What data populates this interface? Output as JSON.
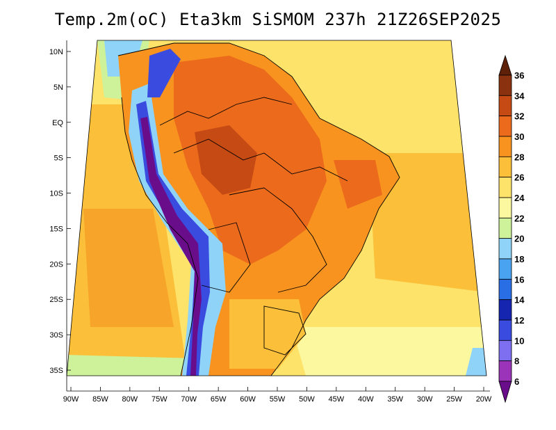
{
  "title": "Temp.2m(oC) Eta3km SiSMOM 237h 21Z26SEP2025",
  "lat_labels": [
    "10N",
    "5N",
    "EQ",
    "5S",
    "10S",
    "15S",
    "20S",
    "25S",
    "30S",
    "35S"
  ],
  "lon_labels": [
    "90W",
    "85W",
    "80W",
    "75W",
    "70W",
    "65W",
    "60W",
    "55W",
    "50W",
    "45W",
    "40W",
    "35W",
    "30W",
    "25W",
    "20W"
  ],
  "colorbar": {
    "labels": [
      "6",
      "8",
      "10",
      "12",
      "14",
      "16",
      "18",
      "20",
      "22",
      "24",
      "26",
      "28",
      "30",
      "32",
      "34",
      "36"
    ],
    "colors": [
      "#6a0d8a",
      "#9b34b8",
      "#7d6ff0",
      "#3a4be0",
      "#1525b0",
      "#2a6ee6",
      "#4aa3f0",
      "#8fd4f8",
      "#cdf29a",
      "#fbf8a0",
      "#fde36a",
      "#fbbf3a",
      "#f7931e",
      "#ec6a1c",
      "#c64a14",
      "#8a3210",
      "#5e2008"
    ]
  },
  "map_colors": {
    "ocean_pacific": "#fbbf3a",
    "ocean_atlantic_warm": "#fde36a",
    "land_warm": "#f7931e",
    "land_hot": "#ec6a1c",
    "andes_cold": "#3a4be0",
    "andes_coldest": "#6a0d8a"
  }
}
